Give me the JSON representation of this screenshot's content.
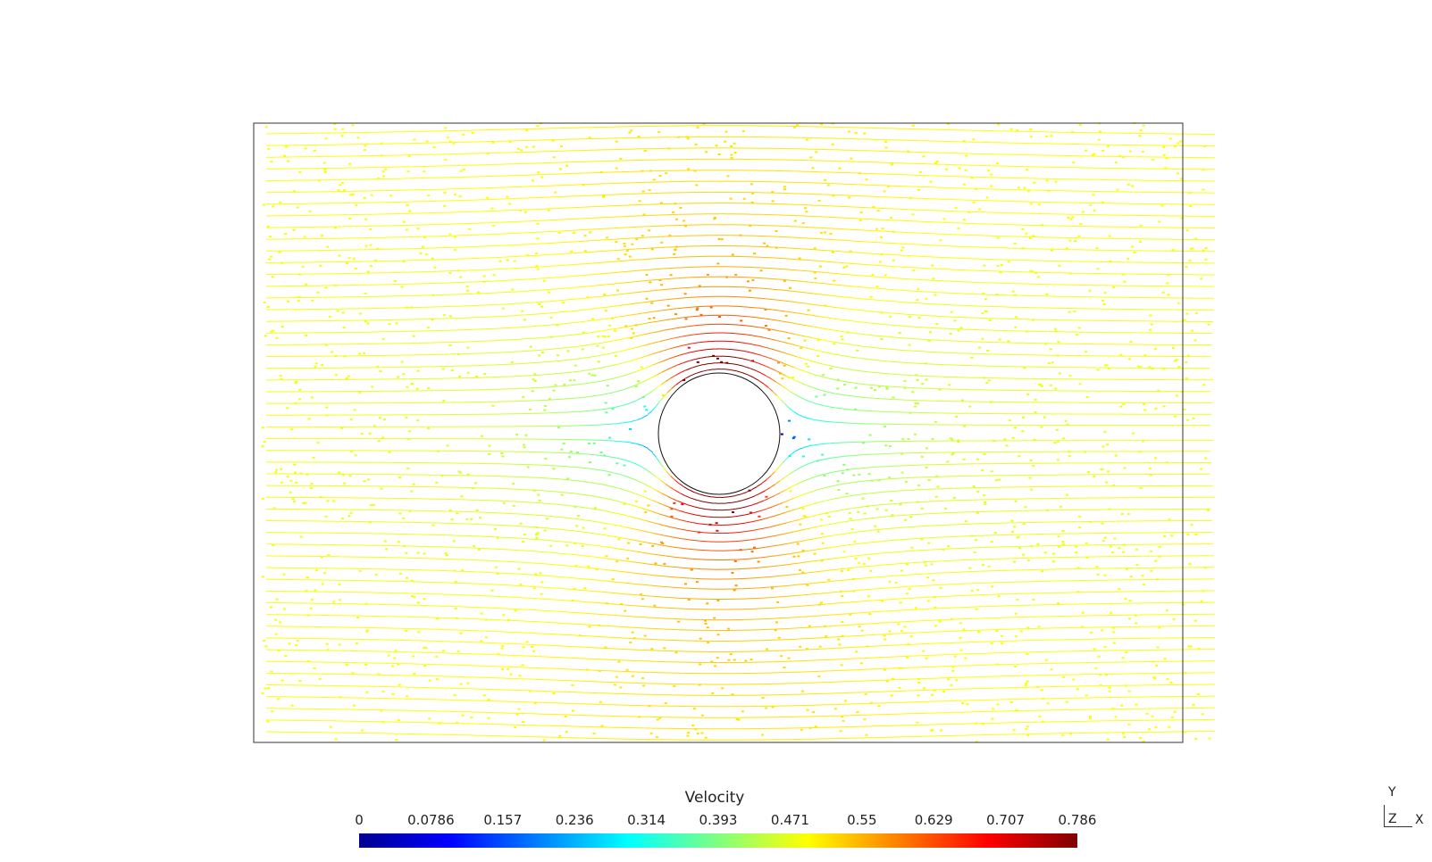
{
  "colorbar": {
    "title": "Velocity",
    "ticks": [
      "0",
      "0.0786",
      "0.157",
      "0.236",
      "0.314",
      "0.393",
      "0.471",
      "0.55",
      "0.629",
      "0.707",
      "0.786"
    ],
    "colors": [
      "#00008f",
      "#0000ff",
      "#0080ff",
      "#00ffff",
      "#80ff80",
      "#ffff00",
      "#ff8000",
      "#ff0000",
      "#800000"
    ]
  },
  "axes_widget": {
    "y": "Y",
    "z": "Z",
    "x": "X"
  }
}
